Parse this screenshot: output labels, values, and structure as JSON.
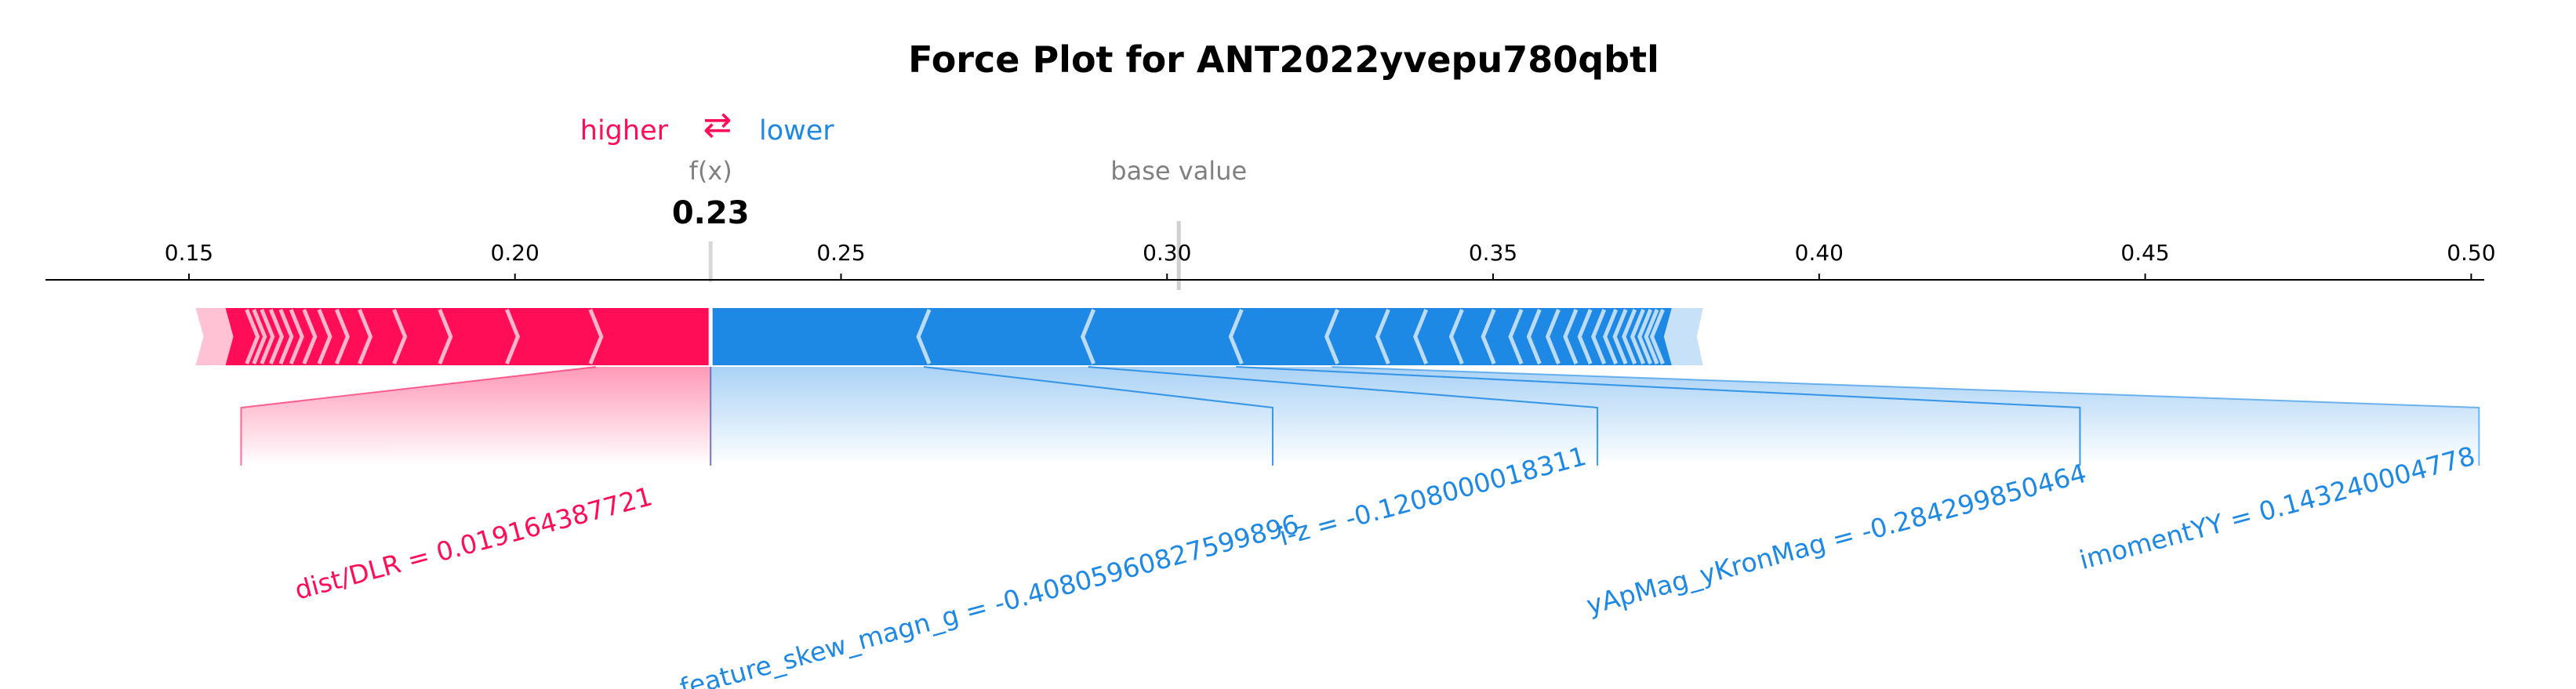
{
  "chart_data": {
    "type": "force",
    "title": "Force Plot for ANT2022yvepu780qbtl",
    "legend": {
      "higher": "higher",
      "lower": "lower",
      "arrows": "⇄"
    },
    "fx_label": "f(x)",
    "fx_value": 0.23,
    "fx_text": "0.23",
    "base_value_label": "base value",
    "base_value": 0.3018,
    "xlim": [
      0.128,
      0.502
    ],
    "xticks": [
      0.15,
      0.2,
      0.25,
      0.3,
      0.35,
      0.4,
      0.45,
      0.5
    ],
    "xtick_labels": [
      "0.15",
      "0.20",
      "0.25",
      "0.30",
      "0.35",
      "0.40",
      "0.45",
      "0.50"
    ],
    "positive_extent": [
      0.152,
      0.23
    ],
    "negative_extent": [
      0.23,
      0.381
    ],
    "positive_chevrons": [
      0.2124,
      0.1996,
      0.1893,
      0.1823,
      0.177,
      0.1735,
      0.1708,
      0.1685,
      0.1665,
      0.1649,
      0.1634,
      0.162,
      0.1608,
      0.1597
    ],
    "negative_chevrons": [
      0.2627,
      0.2879,
      0.3106,
      0.3253,
      0.3331,
      0.3389,
      0.3444,
      0.3493,
      0.3535,
      0.3563,
      0.3592,
      0.3619,
      0.3641,
      0.3662,
      0.368,
      0.3695,
      0.3709,
      0.3722,
      0.3733,
      0.3743,
      0.3752
    ],
    "labels": [
      {
        "text": "dist/DLR = 0.019164387721",
        "effect": "higher",
        "from": [
          0.2124,
          0.23
        ],
        "tick": [
          0.158,
          0.23
        ]
      },
      {
        "text": "feature_skew_magn_g = -0.40805960827599896",
        "effect": "lower",
        "from": [
          0.23,
          0.2627
        ],
        "tick": [
          0.23,
          0.3162
        ]
      },
      {
        "text": "i-z = -0.1208000018311",
        "effect": "lower",
        "from": [
          0.2627,
          0.2879
        ],
        "tick": [
          0.3162,
          0.366
        ]
      },
      {
        "text": "yApMag_yKronMag = -0.284299850464",
        "effect": "lower",
        "from": [
          0.2879,
          0.3106
        ],
        "tick": [
          0.366,
          0.44
        ]
      },
      {
        "text": "imomentYY = 0.143240004778",
        "effect": "lower",
        "from": [
          0.3106,
          0.3253
        ],
        "tick": [
          0.44,
          0.5012
        ]
      }
    ],
    "colors": {
      "positive": "#ff0d57",
      "negative": "#1e88e5",
      "axis": "#000000",
      "muted": "#808080"
    }
  }
}
